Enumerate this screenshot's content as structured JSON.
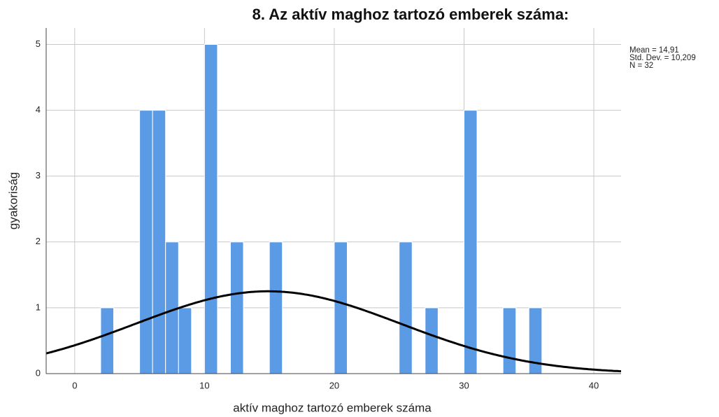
{
  "chart_data": {
    "type": "histogram",
    "title": "8. Az aktív maghoz tartozó emberek száma:",
    "x_label": "aktív maghoz tartozó emberek száma",
    "y_label": "gyakoriság",
    "bins": [
      2,
      3,
      4,
      5,
      6,
      7,
      8,
      9,
      10,
      11,
      12,
      13,
      14,
      15,
      16,
      17,
      18,
      19,
      20,
      21,
      22,
      23,
      24,
      25,
      26,
      27,
      28,
      29,
      30,
      31,
      32,
      33,
      34,
      35,
      36
    ],
    "counts": [
      1,
      0,
      0,
      4,
      4,
      2,
      1,
      0,
      5,
      0,
      2,
      0,
      0,
      2,
      0,
      0,
      0,
      0,
      2,
      0,
      0,
      0,
      0,
      2,
      0,
      1,
      0,
      0,
      4,
      0,
      0,
      1,
      0,
      1
    ],
    "color": "#5b9be6",
    "xlim": [
      -2.2,
      42.1
    ],
    "xticks": [
      0,
      10,
      20,
      30,
      40
    ],
    "ylim": [
      0,
      5.25
    ],
    "yticks": [
      0,
      1,
      2,
      3,
      4,
      5
    ],
    "grid": true,
    "stats": [
      {
        "text": "Mean = 14,91",
        "value": 14.91
      },
      {
        "text": "Std. Dev. = 10,209",
        "value": 10.209
      },
      {
        "text": "N = 32",
        "value": 32
      }
    ]
  }
}
